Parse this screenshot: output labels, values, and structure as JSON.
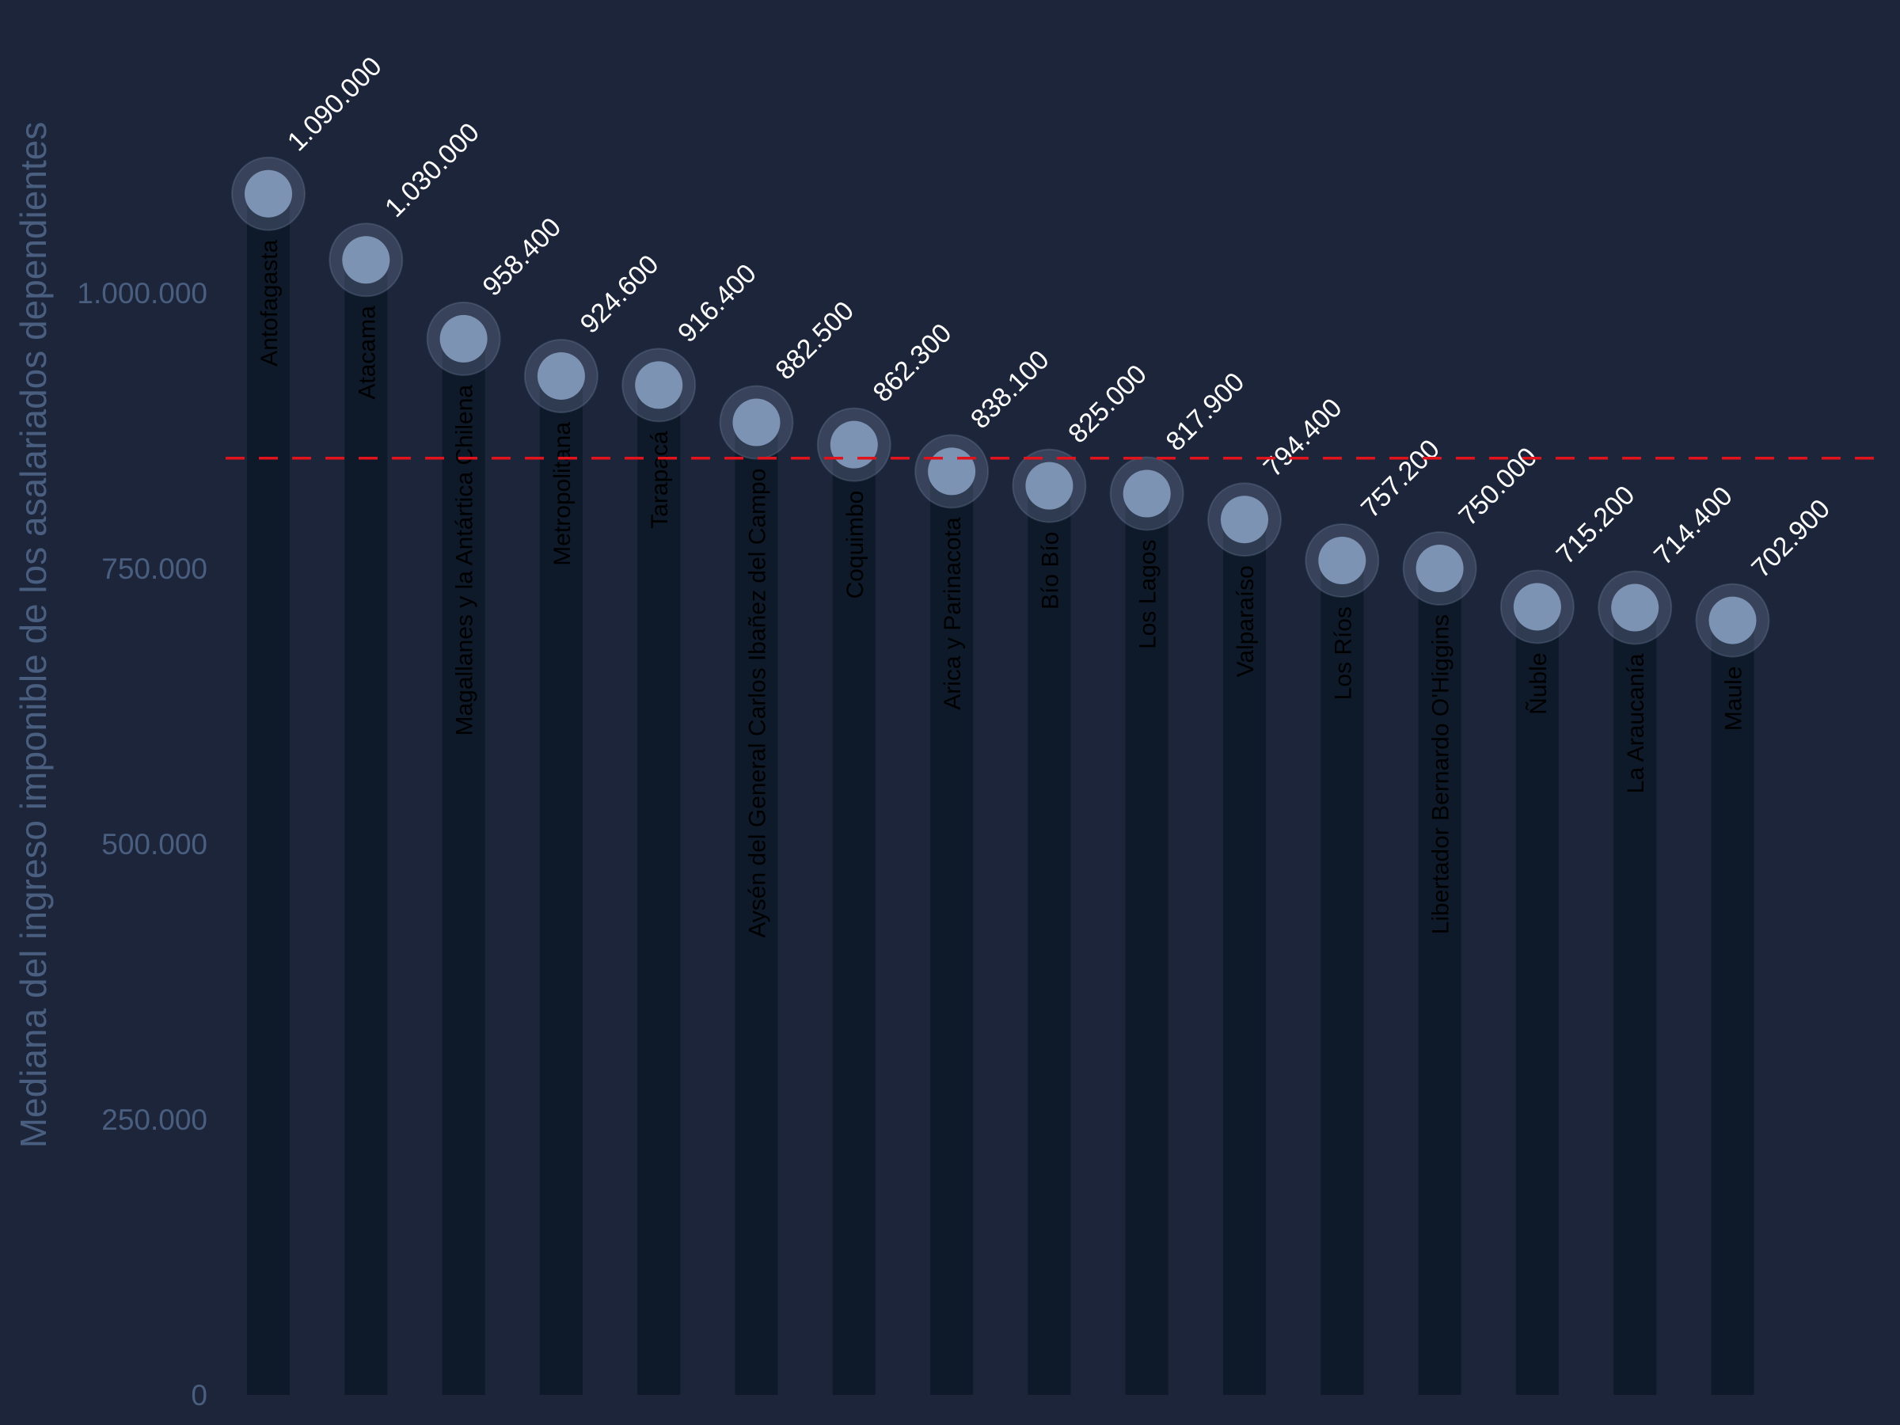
{
  "chart_data": {
    "type": "lollipop",
    "categories": [
      "Antofagasta",
      "Atacama",
      "Magallanes y la Antártica Chilena",
      "Metropolitana",
      "Tarapacá",
      "Aysén del General Carlos Ibañez del Campo",
      "Coquimbo",
      "Arica y Parinacota",
      "Bío Bío",
      "Los Lagos",
      "Valparaíso",
      "Los Ríos",
      "Libertador Bernardo O'Higgins",
      "Ñuble",
      "La Araucanía",
      "Maule"
    ],
    "values": [
      1090000,
      1030000,
      958400,
      924600,
      916400,
      882500,
      862300,
      838100,
      825000,
      817900,
      794400,
      757200,
      750000,
      715200,
      714400,
      702900
    ],
    "value_labels": [
      "1.090.000",
      "1.030.000",
      "958.400",
      "924.600",
      "916.400",
      "882.500",
      "862.300",
      "838.100",
      "825.000",
      "817.900",
      "794.400",
      "757.200",
      "750.000",
      "715.200",
      "714.400",
      "702.900"
    ],
    "ylabel": "Mediana del ingreso imponible de los asalariados dependientes",
    "yticks": [
      0,
      250000,
      500000,
      750000,
      1000000
    ],
    "ytick_labels": [
      "0",
      "250.000",
      "500.000",
      "750.000",
      "1.000.000"
    ],
    "ylim": [
      0,
      1120000
    ],
    "reference_line": 850000,
    "grid": false,
    "colors": {
      "background": "#1c2539",
      "stem": "#0e1a2a",
      "dot": "#7d93b3",
      "reference_line": "#e3131b",
      "axis_text": "#4a5e80",
      "value_text": "#ffffff",
      "category_text": "#000000"
    }
  }
}
